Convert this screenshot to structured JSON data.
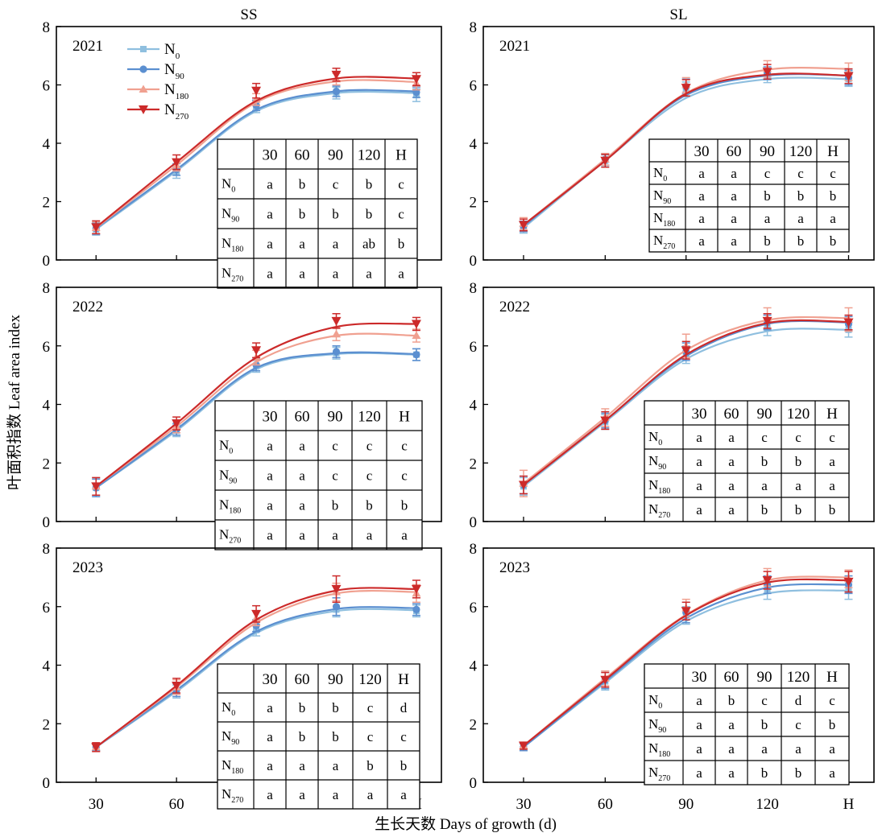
{
  "figure": {
    "ylabel": "叶面积指数 Leaf area index",
    "xlabel": "生长天数 Days of growth (d)"
  },
  "legend": [
    {
      "base": "N",
      "sub": "0",
      "color": "#8fbfdf",
      "marker": "square"
    },
    {
      "base": "N",
      "sub": "90",
      "color": "#5b8fd0",
      "marker": "circle"
    },
    {
      "base": "N",
      "sub": "180",
      "color": "#f0a090",
      "marker": "triangle-up"
    },
    {
      "base": "N",
      "sub": "270",
      "color": "#cc2a2a",
      "marker": "triangle-down"
    }
  ],
  "table_header": [
    "",
    "30",
    "60",
    "90",
    "120",
    "H"
  ],
  "chart_data": [
    {
      "type": "line",
      "column_title": "SS",
      "year": "2021",
      "categories": [
        "30",
        "60",
        "90",
        "120",
        "H"
      ],
      "ylim": [
        0,
        8
      ],
      "yticks": [
        0,
        2,
        4,
        6,
        8
      ],
      "series": [
        {
          "name": "N0",
          "points": [
            1.05,
            3.0,
            5.25,
            5.72,
            5.65
          ],
          "errors": [
            0.2,
            0.2,
            0.2,
            0.2,
            0.22
          ],
          "curve": [
            1.05,
            3.05,
            5.1,
            5.72,
            5.72
          ]
        },
        {
          "name": "N90",
          "points": [
            1.08,
            3.1,
            5.3,
            5.78,
            5.75
          ],
          "errors": [
            0.2,
            0.2,
            0.18,
            0.18,
            0.18
          ],
          "curve": [
            1.08,
            3.1,
            5.15,
            5.78,
            5.78
          ]
        },
        {
          "name": "N180",
          "points": [
            1.1,
            3.25,
            5.5,
            6.2,
            6.05
          ],
          "errors": [
            0.2,
            0.2,
            0.2,
            0.2,
            0.22
          ],
          "curve": [
            1.1,
            3.25,
            5.4,
            6.12,
            6.1
          ]
        },
        {
          "name": "N270",
          "points": [
            1.12,
            3.35,
            5.8,
            6.35,
            6.2
          ],
          "errors": [
            0.22,
            0.25,
            0.25,
            0.22,
            0.22
          ],
          "curve": [
            1.12,
            3.35,
            5.45,
            6.22,
            6.22
          ]
        }
      ],
      "table": [
        [
          "N0",
          "a",
          "b",
          "c",
          "b",
          "c"
        ],
        [
          "N90",
          "a",
          "b",
          "b",
          "b",
          "c"
        ],
        [
          "N180",
          "a",
          "a",
          "a",
          "ab",
          "b"
        ],
        [
          "N270",
          "a",
          "a",
          "a",
          "a",
          "a"
        ]
      ]
    },
    {
      "type": "line",
      "column_title": "SL",
      "year": "2021",
      "categories": [
        "30",
        "60",
        "90",
        "120",
        "H"
      ],
      "ylim": [
        0,
        8
      ],
      "yticks": [
        0,
        2,
        4,
        6,
        8
      ],
      "series": [
        {
          "name": "N0",
          "points": [
            1.1,
            3.4,
            5.85,
            6.3,
            6.2
          ],
          "errors": [
            0.18,
            0.2,
            0.25,
            0.22,
            0.25
          ],
          "curve": [
            1.1,
            3.4,
            5.55,
            6.2,
            6.2
          ]
        },
        {
          "name": "N90",
          "points": [
            1.15,
            3.45,
            5.95,
            6.4,
            6.25
          ],
          "errors": [
            0.18,
            0.2,
            0.25,
            0.22,
            0.25
          ],
          "curve": [
            1.15,
            3.45,
            5.65,
            6.32,
            6.32
          ]
        },
        {
          "name": "N180",
          "points": [
            1.25,
            3.45,
            6.0,
            6.55,
            6.45
          ],
          "errors": [
            0.2,
            0.2,
            0.25,
            0.28,
            0.3
          ],
          "curve": [
            1.2,
            3.45,
            5.72,
            6.52,
            6.55
          ]
        },
        {
          "name": "N270",
          "points": [
            1.2,
            3.4,
            5.9,
            6.45,
            6.3
          ],
          "errors": [
            0.2,
            0.22,
            0.28,
            0.25,
            0.25
          ],
          "curve": [
            1.2,
            3.4,
            5.7,
            6.35,
            6.32
          ]
        }
      ],
      "table": [
        [
          "N0",
          "a",
          "a",
          "c",
          "c",
          "c"
        ],
        [
          "N90",
          "a",
          "a",
          "b",
          "b",
          "b"
        ],
        [
          "N180",
          "a",
          "a",
          "a",
          "a",
          "a"
        ],
        [
          "N270",
          "a",
          "a",
          "b",
          "b",
          "b"
        ]
      ]
    },
    {
      "type": "line",
      "column_title": "",
      "year": "2022",
      "categories": [
        "30",
        "60",
        "90",
        "120",
        "H"
      ],
      "ylim": [
        0,
        8
      ],
      "yticks": [
        0,
        2,
        4,
        6,
        8
      ],
      "series": [
        {
          "name": "N0",
          "points": [
            1.15,
            3.1,
            5.3,
            5.75,
            5.7
          ],
          "errors": [
            0.3,
            0.2,
            0.2,
            0.2,
            0.2
          ],
          "curve": [
            1.15,
            3.1,
            5.2,
            5.72,
            5.7
          ]
        },
        {
          "name": "N90",
          "points": [
            1.15,
            3.15,
            5.35,
            5.8,
            5.7
          ],
          "errors": [
            0.3,
            0.2,
            0.2,
            0.2,
            0.2
          ],
          "curve": [
            1.15,
            3.15,
            5.25,
            5.75,
            5.72
          ]
        },
        {
          "name": "N180",
          "points": [
            1.2,
            3.25,
            5.6,
            6.4,
            6.35
          ],
          "errors": [
            0.3,
            0.22,
            0.25,
            0.22,
            0.22
          ],
          "curve": [
            1.2,
            3.25,
            5.45,
            6.35,
            6.35
          ]
        },
        {
          "name": "N270",
          "points": [
            1.2,
            3.35,
            5.85,
            6.85,
            6.75
          ],
          "errors": [
            0.3,
            0.22,
            0.25,
            0.25,
            0.22
          ],
          "curve": [
            1.2,
            3.35,
            5.6,
            6.65,
            6.75
          ]
        }
      ],
      "table": [
        [
          "N0",
          "a",
          "a",
          "c",
          "c",
          "c"
        ],
        [
          "N90",
          "a",
          "a",
          "c",
          "c",
          "c"
        ],
        [
          "N180",
          "a",
          "a",
          "b",
          "b",
          "b"
        ],
        [
          "N270",
          "a",
          "a",
          "a",
          "a",
          "a"
        ]
      ]
    },
    {
      "type": "line",
      "column_title": "",
      "year": "2022",
      "categories": [
        "30",
        "60",
        "90",
        "120",
        "H"
      ],
      "ylim": [
        0,
        8
      ],
      "yticks": [
        0,
        2,
        4,
        6,
        8
      ],
      "series": [
        {
          "name": "N0",
          "points": [
            1.2,
            3.4,
            5.7,
            6.6,
            6.55
          ],
          "errors": [
            0.3,
            0.25,
            0.3,
            0.25,
            0.25
          ],
          "curve": [
            1.2,
            3.4,
            5.55,
            6.5,
            6.55
          ]
        },
        {
          "name": "N90",
          "points": [
            1.25,
            3.45,
            5.8,
            6.8,
            6.75
          ],
          "errors": [
            0.3,
            0.25,
            0.3,
            0.25,
            0.25
          ],
          "curve": [
            1.25,
            3.45,
            5.65,
            6.75,
            6.8
          ]
        },
        {
          "name": "N180",
          "points": [
            1.3,
            3.55,
            6.0,
            6.95,
            6.9
          ],
          "errors": [
            0.45,
            0.3,
            0.4,
            0.35,
            0.4
          ],
          "curve": [
            1.3,
            3.55,
            5.85,
            6.88,
            6.95
          ]
        },
        {
          "name": "N270",
          "points": [
            1.25,
            3.45,
            5.85,
            6.85,
            6.8
          ],
          "errors": [
            0.3,
            0.3,
            0.3,
            0.25,
            0.25
          ],
          "curve": [
            1.25,
            3.45,
            5.7,
            6.78,
            6.82
          ]
        }
      ],
      "table": [
        [
          "N0",
          "a",
          "a",
          "c",
          "c",
          "c"
        ],
        [
          "N90",
          "a",
          "a",
          "b",
          "b",
          "a"
        ],
        [
          "N180",
          "a",
          "a",
          "a",
          "a",
          "a"
        ],
        [
          "N270",
          "a",
          "a",
          "b",
          "b",
          "b"
        ]
      ]
    },
    {
      "type": "line",
      "column_title": "",
      "year": "2023",
      "categories": [
        "30",
        "60",
        "90",
        "120",
        "H"
      ],
      "ylim": [
        0,
        8
      ],
      "yticks": [
        0,
        2,
        4,
        6,
        8
      ],
      "series": [
        {
          "name": "N0",
          "points": [
            1.2,
            3.1,
            5.2,
            5.9,
            5.85
          ],
          "errors": [
            0.12,
            0.22,
            0.2,
            0.25,
            0.2
          ],
          "curve": [
            1.2,
            3.1,
            5.1,
            5.85,
            5.88
          ]
        },
        {
          "name": "N90",
          "points": [
            1.2,
            3.15,
            5.35,
            6.0,
            5.9
          ],
          "errors": [
            0.12,
            0.22,
            0.2,
            0.3,
            0.2
          ],
          "curve": [
            1.2,
            3.15,
            5.15,
            5.92,
            5.95
          ]
        },
        {
          "name": "N180",
          "points": [
            1.2,
            3.25,
            5.6,
            6.5,
            6.45
          ],
          "errors": [
            0.15,
            0.25,
            0.25,
            0.3,
            0.3
          ],
          "curve": [
            1.2,
            3.25,
            5.45,
            6.45,
            6.5
          ]
        },
        {
          "name": "N270",
          "points": [
            1.2,
            3.3,
            5.75,
            6.6,
            6.6
          ],
          "errors": [
            0.15,
            0.25,
            0.28,
            0.45,
            0.3
          ],
          "curve": [
            1.2,
            3.3,
            5.55,
            6.55,
            6.6
          ]
        }
      ],
      "table": [
        [
          "N0",
          "a",
          "b",
          "b",
          "c",
          "d"
        ],
        [
          "N90",
          "a",
          "b",
          "b",
          "c",
          "c"
        ],
        [
          "N180",
          "a",
          "a",
          "a",
          "b",
          "b"
        ],
        [
          "N270",
          "a",
          "a",
          "a",
          "a",
          "a"
        ]
      ]
    },
    {
      "type": "line",
      "column_title": "",
      "year": "2023",
      "categories": [
        "30",
        "60",
        "90",
        "120",
        "H"
      ],
      "ylim": [
        0,
        8
      ],
      "yticks": [
        0,
        2,
        4,
        6,
        8
      ],
      "series": [
        {
          "name": "N0",
          "points": [
            1.2,
            3.45,
            5.7,
            6.55,
            6.55
          ],
          "errors": [
            0.12,
            0.3,
            0.3,
            0.3,
            0.3
          ],
          "curve": [
            1.2,
            3.4,
            5.5,
            6.45,
            6.55
          ]
        },
        {
          "name": "N90",
          "points": [
            1.2,
            3.5,
            5.8,
            6.75,
            6.75
          ],
          "errors": [
            0.12,
            0.3,
            0.35,
            0.3,
            0.3
          ],
          "curve": [
            1.2,
            3.45,
            5.6,
            6.65,
            6.75
          ]
        },
        {
          "name": "N180",
          "points": [
            1.25,
            3.55,
            5.95,
            7.0,
            6.95
          ],
          "errors": [
            0.12,
            0.25,
            0.3,
            0.3,
            0.3
          ],
          "curve": [
            1.25,
            3.55,
            5.72,
            6.9,
            7.0
          ]
        },
        {
          "name": "N270",
          "points": [
            1.25,
            3.5,
            5.85,
            6.9,
            6.85
          ],
          "errors": [
            0.12,
            0.25,
            0.3,
            0.3,
            0.35
          ],
          "curve": [
            1.25,
            3.5,
            5.7,
            6.82,
            6.9
          ]
        }
      ],
      "table": [
        [
          "N0",
          "a",
          "b",
          "c",
          "d",
          "c"
        ],
        [
          "N90",
          "a",
          "a",
          "b",
          "c",
          "b"
        ],
        [
          "N180",
          "a",
          "a",
          "a",
          "a",
          "a"
        ],
        [
          "N270",
          "a",
          "a",
          "b",
          "b",
          "a"
        ]
      ]
    }
  ]
}
